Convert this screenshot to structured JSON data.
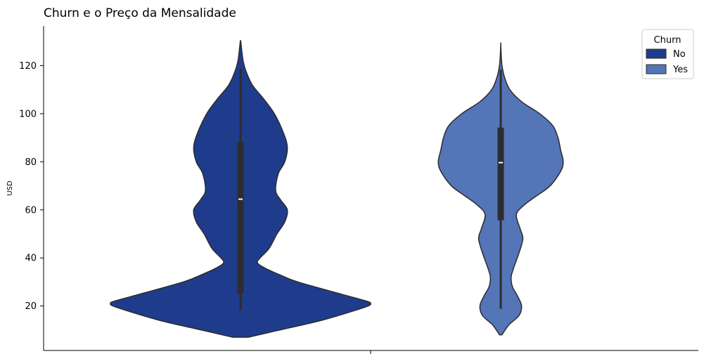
{
  "chart_data": {
    "type": "violin",
    "title": "Churn e o Preço da Mensalidade",
    "xlabel": "",
    "ylabel": "USD",
    "ylim": [
      1.5,
      136.5
    ],
    "yticks": [
      20,
      40,
      60,
      80,
      100,
      120
    ],
    "legend": {
      "title": "Churn",
      "placement": "top-right"
    },
    "grid": false,
    "series": [
      {
        "name": "No",
        "color": "#1f3c8c",
        "side": "left",
        "box": {
          "min": 18.25,
          "q1": 25.1,
          "median": 64.45,
          "q3": 88.4,
          "max": 118.75
        },
        "density": [
          [
            7,
            0.06
          ],
          [
            10,
            0.3
          ],
          [
            14,
            0.62
          ],
          [
            18,
            0.87
          ],
          [
            20,
            0.98
          ],
          [
            21,
            1.0
          ],
          [
            22,
            0.97
          ],
          [
            25,
            0.77
          ],
          [
            30,
            0.44
          ],
          [
            33,
            0.3
          ],
          [
            36,
            0.18
          ],
          [
            38,
            0.13
          ],
          [
            40,
            0.15
          ],
          [
            44,
            0.22
          ],
          [
            50,
            0.28
          ],
          [
            55,
            0.34
          ],
          [
            60,
            0.36
          ],
          [
            64,
            0.31
          ],
          [
            68,
            0.27
          ],
          [
            75,
            0.29
          ],
          [
            80,
            0.34
          ],
          [
            86,
            0.36
          ],
          [
            92,
            0.33
          ],
          [
            100,
            0.26
          ],
          [
            106,
            0.18
          ],
          [
            112,
            0.09
          ],
          [
            118,
            0.04
          ],
          [
            122,
            0.02
          ],
          [
            126,
            0.01
          ],
          [
            130,
            0.002
          ]
        ]
      },
      {
        "name": "Yes",
        "color": "#5475b8",
        "side": "right",
        "box": {
          "min": 18.85,
          "q1": 55.65,
          "median": 79.65,
          "q3": 94.2,
          "max": 118.35
        },
        "density": [
          [
            8,
            0.01
          ],
          [
            12,
            0.06
          ],
          [
            16,
            0.14
          ],
          [
            20,
            0.16
          ],
          [
            24,
            0.13
          ],
          [
            28,
            0.09
          ],
          [
            32,
            0.08
          ],
          [
            36,
            0.1
          ],
          [
            42,
            0.14
          ],
          [
            48,
            0.17
          ],
          [
            52,
            0.15
          ],
          [
            58,
            0.12
          ],
          [
            62,
            0.18
          ],
          [
            66,
            0.28
          ],
          [
            70,
            0.38
          ],
          [
            76,
            0.46
          ],
          [
            80,
            0.48
          ],
          [
            85,
            0.46
          ],
          [
            90,
            0.44
          ],
          [
            95,
            0.4
          ],
          [
            100,
            0.3
          ],
          [
            105,
            0.16
          ],
          [
            110,
            0.07
          ],
          [
            115,
            0.03
          ],
          [
            120,
            0.01
          ],
          [
            125,
            0.003
          ],
          [
            129,
            0.0
          ]
        ]
      }
    ]
  }
}
